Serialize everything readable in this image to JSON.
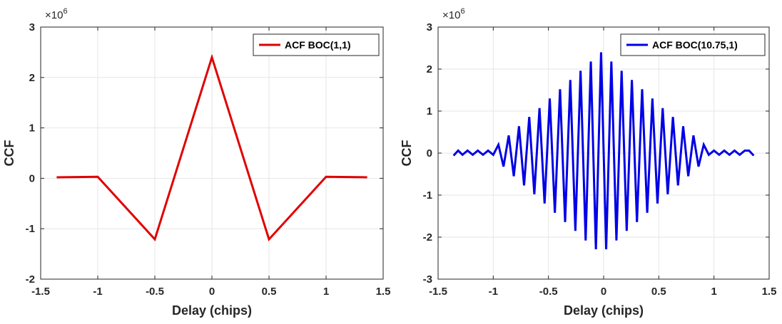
{
  "chart_data": [
    {
      "type": "line",
      "title": "",
      "xlabel": "Delay (chips)",
      "ylabel": "CCF",
      "y_exponent_label": "×10",
      "y_exponent": "6",
      "xlim": [
        -1.5,
        1.5
      ],
      "ylim": [
        -2,
        3
      ],
      "xticks": [
        "-1.5",
        "-1",
        "-0.5",
        "0",
        "0.5",
        "1",
        "1.5"
      ],
      "yticks": [
        "-2",
        "-1",
        "0",
        "1",
        "2",
        "3"
      ],
      "grid": true,
      "legend_position": "top-right",
      "series": [
        {
          "name": "ACF BOC(1,1)",
          "color": "#e00000",
          "x": [
            -1.36,
            -1.0,
            -0.5,
            0.0,
            0.5,
            1.0,
            1.36
          ],
          "y": [
            0.02,
            0.03,
            -1.21,
            2.4,
            -1.21,
            0.03,
            0.02
          ]
        }
      ]
    },
    {
      "type": "line",
      "title": "",
      "xlabel": "Delay (chips)",
      "ylabel": "CCF",
      "y_exponent_label": "×10",
      "y_exponent": "6",
      "xlim": [
        -1.5,
        1.5
      ],
      "ylim": [
        -3,
        3
      ],
      "xticks": [
        "-1.5",
        "-1",
        "-0.5",
        "0",
        "0.5",
        "1",
        "1.5"
      ],
      "yticks": [
        "-3",
        "-2",
        "-1",
        "0",
        "1",
        "2",
        "3"
      ],
      "grid": true,
      "legend_position": "top-right",
      "series": [
        {
          "name": "ACF BOC(10.75,1)",
          "color": "#0000e6",
          "x": [
            -1.36,
            -1.318,
            -1.279,
            -1.233,
            -1.186,
            -1.14,
            -1.093,
            -1.047,
            -1.0,
            -0.953,
            -0.907,
            -0.86,
            -0.814,
            -0.767,
            -0.721,
            -0.674,
            -0.628,
            -0.581,
            -0.535,
            -0.488,
            -0.442,
            -0.395,
            -0.349,
            -0.302,
            -0.256,
            -0.209,
            -0.163,
            -0.116,
            -0.07,
            -0.023,
            0.023,
            0.07,
            0.116,
            0.163,
            0.209,
            0.256,
            0.302,
            0.349,
            0.395,
            0.442,
            0.488,
            0.535,
            0.581,
            0.628,
            0.674,
            0.721,
            0.767,
            0.814,
            0.86,
            0.907,
            0.953,
            1.0,
            1.047,
            1.093,
            1.14,
            1.186,
            1.233,
            1.279,
            1.318,
            1.36
          ],
          "y": [
            -0.06,
            0.06,
            -0.04,
            0.06,
            -0.04,
            0.06,
            -0.04,
            0.06,
            -0.04,
            0.2,
            -0.32,
            0.42,
            -0.55,
            0.64,
            -0.77,
            0.86,
            -0.98,
            1.07,
            -1.2,
            1.3,
            -1.42,
            1.52,
            -1.64,
            1.74,
            -1.85,
            1.96,
            -2.08,
            2.18,
            -2.29,
            2.4,
            -2.29,
            2.18,
            -2.08,
            1.96,
            -1.85,
            1.74,
            -1.64,
            1.52,
            -1.42,
            1.3,
            -1.2,
            1.07,
            -0.98,
            0.86,
            -0.77,
            0.64,
            -0.55,
            0.42,
            -0.32,
            0.2,
            -0.04,
            0.06,
            -0.04,
            0.06,
            -0.04,
            0.06,
            -0.04,
            0.06,
            0.06,
            -0.06
          ]
        }
      ]
    }
  ]
}
